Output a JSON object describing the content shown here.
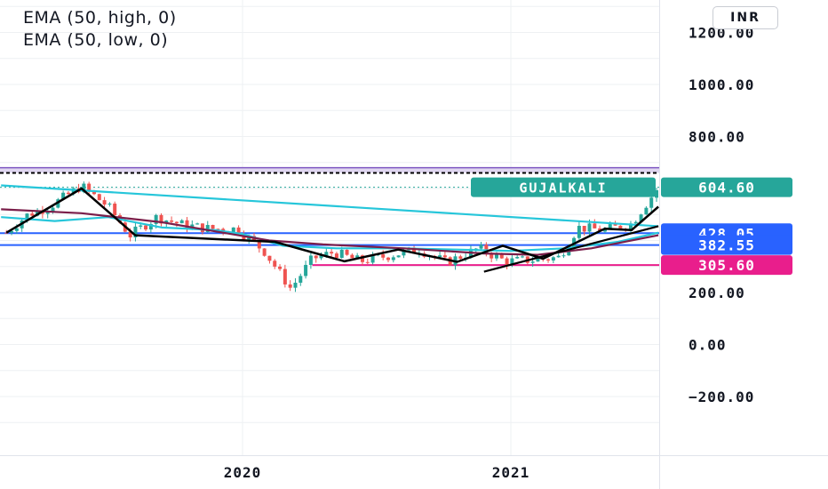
{
  "legend": {
    "line1": "EMA (50, high, 0)",
    "line2": "EMA (50, low, 0)"
  },
  "currency": "INR",
  "chart_data": {
    "type": "line",
    "symbol": "GUJALKALI",
    "last_price": "604.60",
    "y_ticks": [
      "1200.00",
      "1000.00",
      "800.00",
      "200.00",
      "0.00",
      "−200.00"
    ],
    "y_tick_values": [
      1200,
      1000,
      800,
      200,
      0,
      -200
    ],
    "ylim": [
      -300,
      1300
    ],
    "x_ticks": [
      "2020",
      "2021"
    ],
    "x_tick_values": [
      2020.0,
      2021.0
    ],
    "xlim": [
      2019.1,
      2022.13
    ],
    "price_labels": [
      {
        "text": "428.05",
        "value": 428.05,
        "color": "#2962ff"
      },
      {
        "text": "382.55",
        "value": 382.55,
        "color": "#2962ff"
      },
      {
        "text": "305.60",
        "value": 305.6,
        "color": "#e91e8c"
      }
    ],
    "resistance_band": [
      660,
      680
    ],
    "horizontal_lines": [
      {
        "value": 428.05,
        "color": "#2962ff"
      },
      {
        "value": 382.55,
        "color": "#2962ff"
      },
      {
        "value": 305.6,
        "color": "#e91e8c"
      }
    ],
    "close_series": [
      {
        "t": 2019.12,
        "v": 430
      },
      {
        "t": 2019.2,
        "v": 500
      },
      {
        "t": 2019.28,
        "v": 530
      },
      {
        "t": 2019.4,
        "v": 610
      },
      {
        "t": 2019.5,
        "v": 530
      },
      {
        "t": 2019.58,
        "v": 420
      },
      {
        "t": 2019.68,
        "v": 490
      },
      {
        "t": 2019.78,
        "v": 460
      },
      {
        "t": 2019.88,
        "v": 445
      },
      {
        "t": 2019.98,
        "v": 445
      },
      {
        "t": 2020.08,
        "v": 360
      },
      {
        "t": 2020.18,
        "v": 215
      },
      {
        "t": 2020.26,
        "v": 330
      },
      {
        "t": 2020.34,
        "v": 355
      },
      {
        "t": 2020.44,
        "v": 320
      },
      {
        "t": 2020.56,
        "v": 345
      },
      {
        "t": 2020.66,
        "v": 365
      },
      {
        "t": 2020.76,
        "v": 315
      },
      {
        "t": 2020.88,
        "v": 370
      },
      {
        "t": 2020.98,
        "v": 320
      },
      {
        "t": 2021.08,
        "v": 325
      },
      {
        "t": 2021.18,
        "v": 335
      },
      {
        "t": 2021.25,
        "v": 450
      },
      {
        "t": 2021.35,
        "v": 440
      },
      {
        "t": 2021.45,
        "v": 465
      },
      {
        "t": 2021.55,
        "v": 604.6
      }
    ],
    "series": [
      {
        "color": "#26c6da",
        "values": [
          {
            "t": 2019.1,
            "v": 490
          },
          {
            "t": 2019.3,
            "v": 475
          },
          {
            "t": 2019.5,
            "v": 490
          },
          {
            "t": 2019.7,
            "v": 450
          },
          {
            "t": 2019.9,
            "v": 440
          },
          {
            "t": 2020.0,
            "v": 425
          },
          {
            "t": 2020.15,
            "v": 380
          },
          {
            "t": 2020.35,
            "v": 370
          },
          {
            "t": 2020.6,
            "v": 370
          },
          {
            "t": 2020.8,
            "v": 365
          },
          {
            "t": 2021.0,
            "v": 360
          },
          {
            "t": 2021.2,
            "v": 370
          },
          {
            "t": 2021.4,
            "v": 395
          },
          {
            "t": 2021.55,
            "v": 430
          }
        ]
      },
      {
        "color": "#7b1e4a",
        "values": [
          {
            "t": 2019.1,
            "v": 520
          },
          {
            "t": 2019.4,
            "v": 505
          },
          {
            "t": 2019.7,
            "v": 470
          },
          {
            "t": 2019.9,
            "v": 435
          },
          {
            "t": 2020.1,
            "v": 400
          },
          {
            "t": 2020.3,
            "v": 385
          },
          {
            "t": 2020.6,
            "v": 370
          },
          {
            "t": 2020.9,
            "v": 350
          },
          {
            "t": 2021.1,
            "v": 345
          },
          {
            "t": 2021.3,
            "v": 370
          },
          {
            "t": 2021.55,
            "v": 420
          }
        ]
      }
    ],
    "trendlines": [
      {
        "color": "#26c6da",
        "points": [
          {
            "t": 2019.1,
            "v": 612
          },
          {
            "t": 2021.55,
            "v": 455
          }
        ]
      },
      {
        "color": "#000000",
        "points": [
          {
            "t": 2020.9,
            "v": 280
          },
          {
            "t": 2021.55,
            "v": 455
          }
        ]
      }
    ],
    "zigzag": [
      {
        "t": 2019.12,
        "v": 430
      },
      {
        "t": 2019.4,
        "v": 600
      },
      {
        "t": 2019.6,
        "v": 420
      },
      {
        "t": 2020.12,
        "v": 395
      },
      {
        "t": 2020.38,
        "v": 320
      },
      {
        "t": 2020.58,
        "v": 365
      },
      {
        "t": 2020.8,
        "v": 318
      },
      {
        "t": 2020.97,
        "v": 380
      },
      {
        "t": 2021.12,
        "v": 330
      },
      {
        "t": 2021.35,
        "v": 445
      },
      {
        "t": 2021.45,
        "v": 440
      },
      {
        "t": 2021.55,
        "v": 530
      }
    ]
  }
}
